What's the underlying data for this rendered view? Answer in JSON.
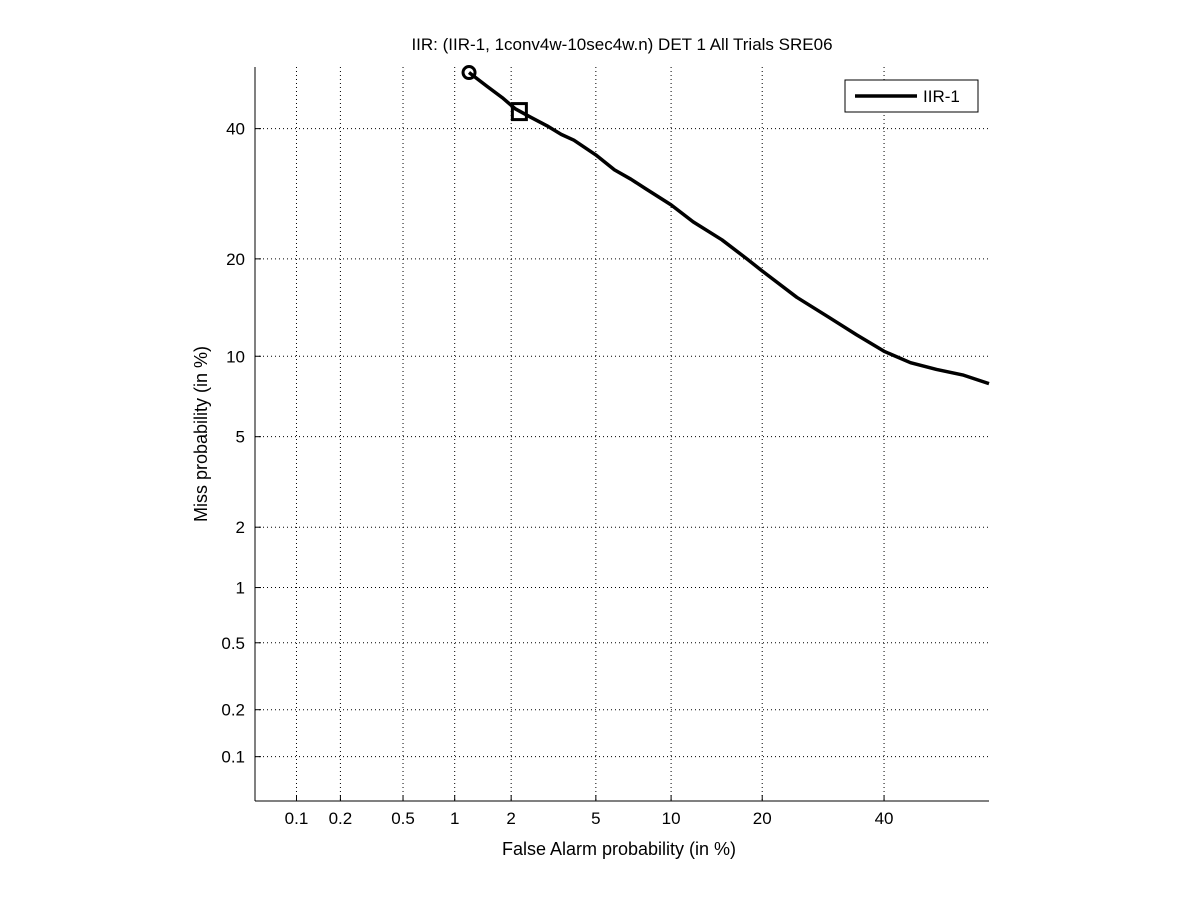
{
  "chart_data": {
    "type": "line",
    "title": "IIR: (IIR-1, 1conv4w-10sec4w.n) DET 1 All Trials SRE06",
    "xlabel": "False Alarm probability (in %)",
    "ylabel": "Miss probability (in %)",
    "xscale": "probit",
    "yscale": "probit",
    "xlim": [
      0.05,
      60
    ],
    "ylim": [
      0.05,
      51
    ],
    "x_ticks": [
      0.1,
      0.2,
      0.5,
      1,
      2,
      5,
      10,
      20,
      40
    ],
    "x_tick_labels": [
      "0.1",
      "0.2",
      "0.5",
      "1",
      "2",
      "5",
      "10",
      "20",
      "40"
    ],
    "y_ticks": [
      0.1,
      0.2,
      0.5,
      1,
      2,
      5,
      10,
      20,
      40
    ],
    "y_tick_labels": [
      "0.1",
      "0.2",
      "0.5",
      "1",
      "2",
      "5",
      "10",
      "20",
      "40"
    ],
    "grid": true,
    "legend_position": "top-right",
    "series": [
      {
        "name": "IIR-1",
        "color": "#000000",
        "x": [
          1.2,
          1.5,
          1.8,
          2.1,
          2.5,
          3,
          3.5,
          4,
          5,
          6,
          7,
          8,
          10,
          12,
          15,
          18,
          20,
          25,
          30,
          35,
          40,
          45,
          50,
          55,
          60
        ],
        "y": [
          50,
          47.5,
          45.5,
          43.5,
          42,
          40.5,
          39,
          38,
          35.5,
          33,
          31.5,
          30,
          27.5,
          25,
          22.5,
          20,
          18.5,
          15.5,
          13.5,
          11.8,
          10.4,
          9.5,
          9,
          8.6,
          8
        ]
      }
    ],
    "markers": [
      {
        "shape": "circle",
        "x": 1.2,
        "y": 50
      },
      {
        "shape": "square",
        "x": 2.2,
        "y": 43
      }
    ]
  }
}
